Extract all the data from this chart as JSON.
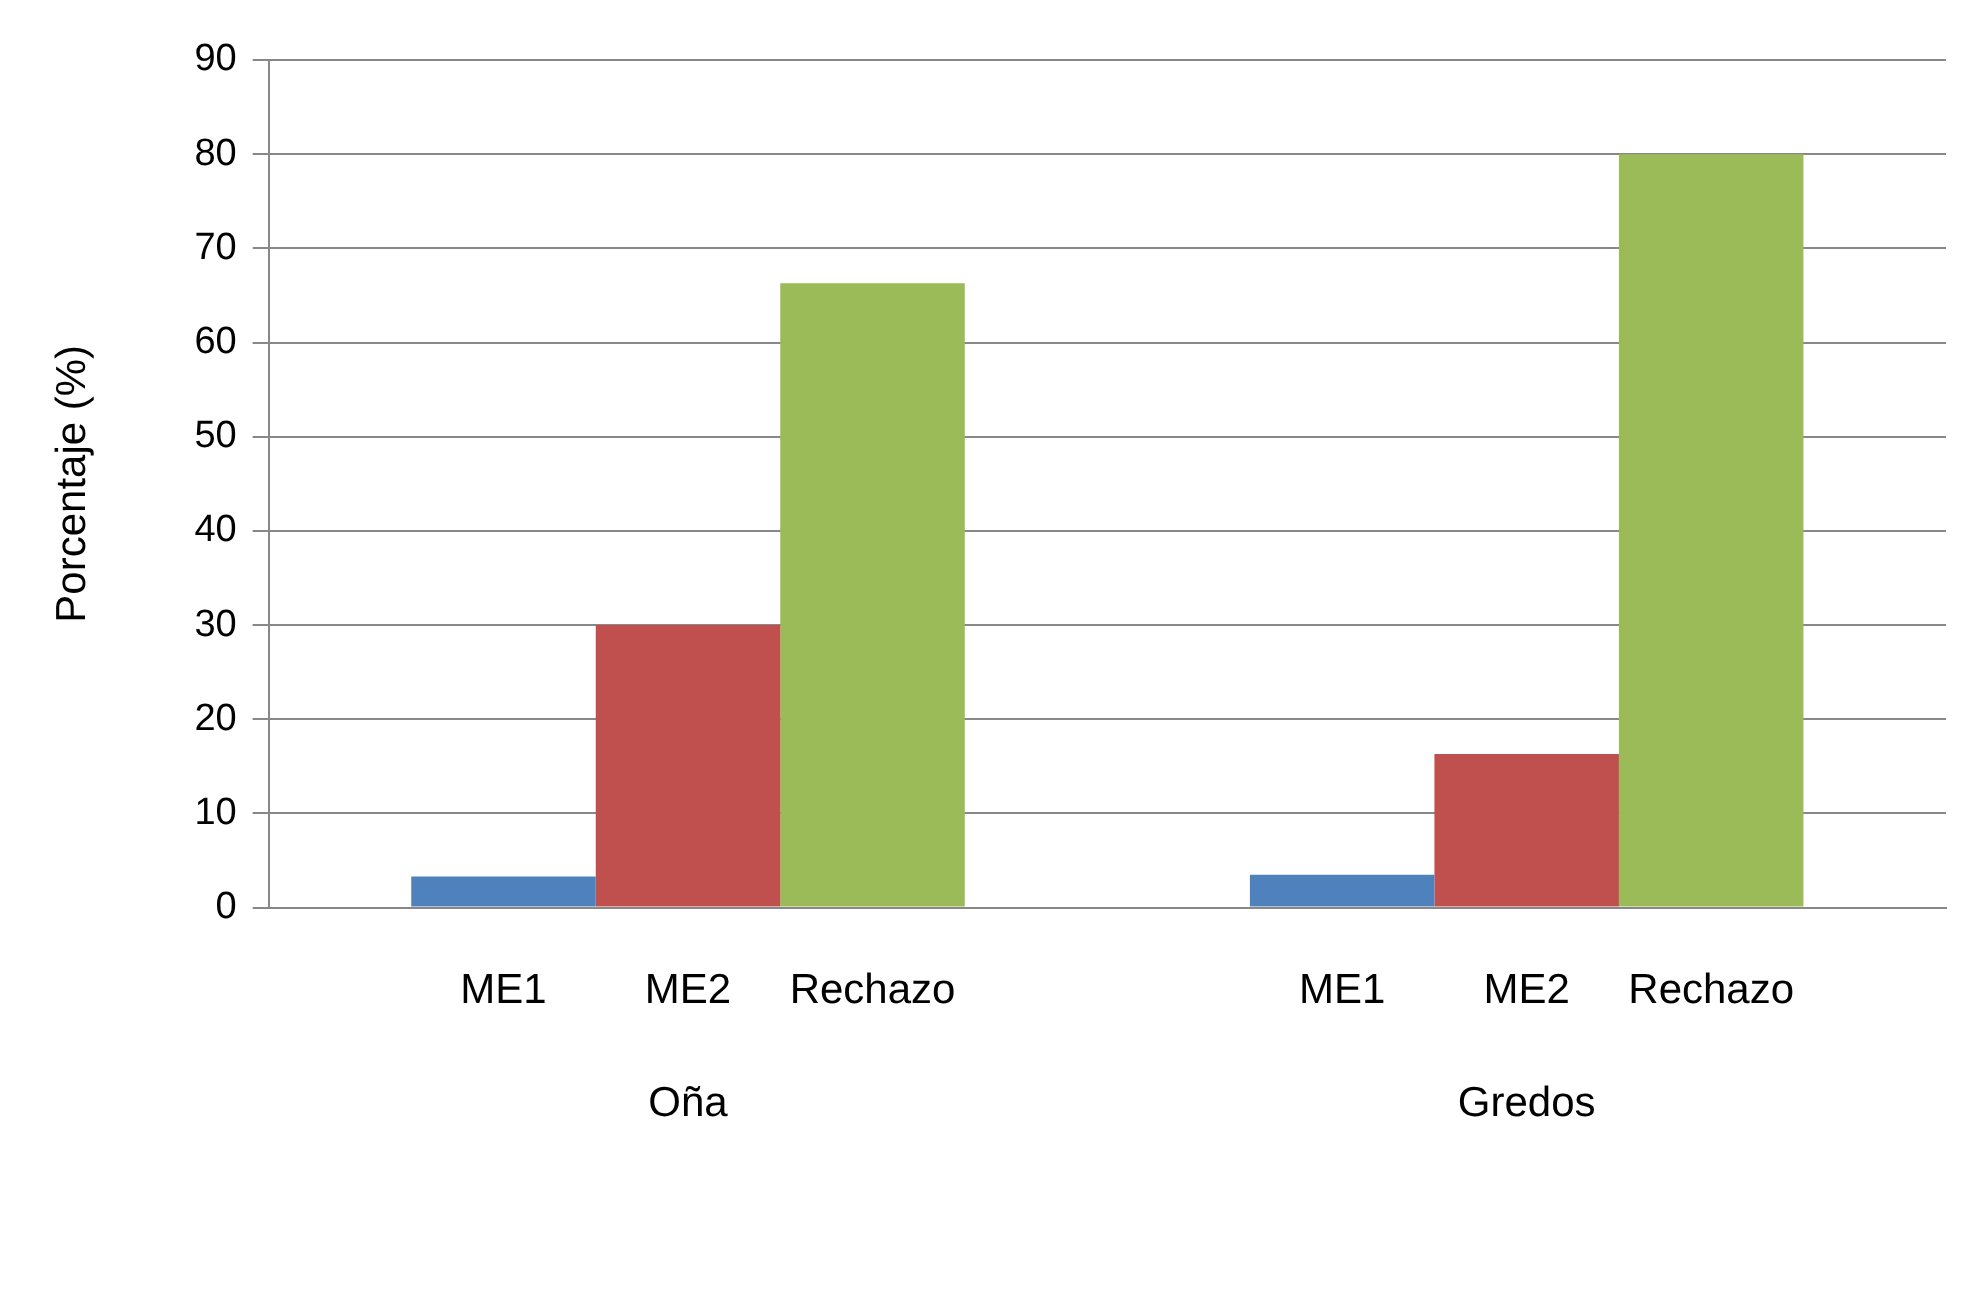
{
  "chart_data": {
    "type": "bar",
    "ylabel": "Porcentaje (%)",
    "categories": [
      "Oña",
      "Gredos"
    ],
    "series": [
      {
        "name": "ME1",
        "color": "#4f81bd",
        "values": [
          3.3,
          3.5
        ]
      },
      {
        "name": "ME2",
        "color": "#c0504d",
        "values": [
          30,
          16.3
        ]
      },
      {
        "name": "Rechazo",
        "color": "#9bbb59",
        "values": [
          66.3,
          80
        ]
      }
    ],
    "ylim": [
      0,
      90
    ],
    "yticks": [
      0,
      10,
      20,
      30,
      40,
      50,
      60,
      70,
      80,
      90
    ],
    "grid": "y",
    "legend": false
  }
}
